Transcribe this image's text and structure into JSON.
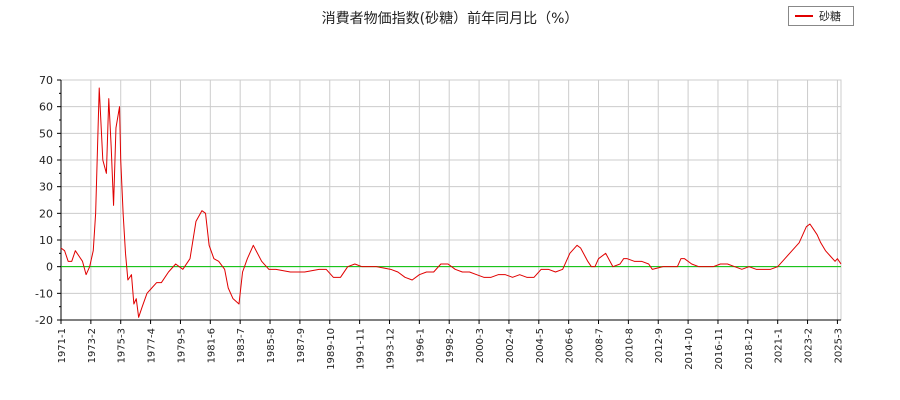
{
  "chart_data": {
    "type": "line",
    "title": "消費者物価指数(砂糖）前年同月比（%）",
    "xlabel": "",
    "ylabel": "",
    "ylim": [
      -20,
      70
    ],
    "yticks": [
      -20,
      -10,
      0,
      10,
      20,
      30,
      40,
      50,
      60,
      70
    ],
    "xlim": [
      "1971-1",
      "2025-6"
    ],
    "xticks": [
      "1971-1",
      "1973-2",
      "1975-3",
      "1977-4",
      "1979-5",
      "1981-6",
      "1983-7",
      "1985-8",
      "1987-9",
      "1989-10",
      "1991-11",
      "1993-12",
      "1996-1",
      "1998-2",
      "2000-3",
      "2002-4",
      "2004-5",
      "2006-6",
      "2008-7",
      "2010-8",
      "2012-9",
      "2014-10",
      "2016-11",
      "2018-12",
      "2021-1",
      "2023-2",
      "2025-3"
    ],
    "grid": true,
    "legend": "top-right",
    "reference_line": {
      "y": 0,
      "color": "#00c000"
    },
    "series": [
      {
        "name": "砂糖",
        "color": "#e00000",
        "points": [
          [
            "1971-1",
            7
          ],
          [
            "1971-4",
            6
          ],
          [
            "1971-7",
            2
          ],
          [
            "1971-10",
            2
          ],
          [
            "1972-1",
            6
          ],
          [
            "1972-4",
            4
          ],
          [
            "1972-7",
            2
          ],
          [
            "1972-10",
            -3
          ],
          [
            "1973-1",
            0
          ],
          [
            "1973-4",
            6
          ],
          [
            "1973-6",
            20
          ],
          [
            "1973-9",
            67
          ],
          [
            "1973-12",
            40
          ],
          [
            "1974-3",
            35
          ],
          [
            "1974-5",
            63
          ],
          [
            "1974-7",
            45
          ],
          [
            "1974-9",
            23
          ],
          [
            "1974-11",
            52
          ],
          [
            "1975-2",
            60
          ],
          [
            "1975-3",
            40
          ],
          [
            "1975-5",
            20
          ],
          [
            "1975-7",
            5
          ],
          [
            "1975-9",
            -5
          ],
          [
            "1975-12",
            -3
          ],
          [
            "1976-2",
            -14
          ],
          [
            "1976-4",
            -12
          ],
          [
            "1976-6",
            -19
          ],
          [
            "1976-9",
            -15
          ],
          [
            "1977-1",
            -10
          ],
          [
            "1977-5",
            -8
          ],
          [
            "1977-9",
            -6
          ],
          [
            "1978-1",
            -6
          ],
          [
            "1978-7",
            -2
          ],
          [
            "1979-1",
            1
          ],
          [
            "1979-7",
            -1
          ],
          [
            "1980-1",
            3
          ],
          [
            "1980-6",
            17
          ],
          [
            "1980-11",
            21
          ],
          [
            "1981-2",
            20
          ],
          [
            "1981-5",
            8
          ],
          [
            "1981-9",
            3
          ],
          [
            "1982-1",
            2
          ],
          [
            "1982-6",
            -1
          ],
          [
            "1982-9",
            -8
          ],
          [
            "1983-1",
            -12
          ],
          [
            "1983-6",
            -14
          ],
          [
            "1983-9",
            -2
          ],
          [
            "1984-1",
            3
          ],
          [
            "1984-6",
            8
          ],
          [
            "1985-1",
            2
          ],
          [
            "1985-7",
            -1
          ],
          [
            "1986-1",
            -1
          ],
          [
            "1987-1",
            -2
          ],
          [
            "1988-1",
            -2
          ],
          [
            "1989-1",
            -1
          ],
          [
            "1989-7",
            -1
          ],
          [
            "1990-1",
            -4
          ],
          [
            "1990-7",
            -4
          ],
          [
            "1991-1",
            0
          ],
          [
            "1991-7",
            1
          ],
          [
            "1992-1",
            0
          ],
          [
            "1993-1",
            0
          ],
          [
            "1994-1",
            -1
          ],
          [
            "1994-7",
            -2
          ],
          [
            "1995-1",
            -4
          ],
          [
            "1995-7",
            -5
          ],
          [
            "1996-1",
            -3
          ],
          [
            "1996-7",
            -2
          ],
          [
            "1997-1",
            -2
          ],
          [
            "1997-7",
            1
          ],
          [
            "1998-1",
            1
          ],
          [
            "1998-7",
            -1
          ],
          [
            "1999-1",
            -2
          ],
          [
            "1999-7",
            -2
          ],
          [
            "2000-1",
            -3
          ],
          [
            "2000-7",
            -4
          ],
          [
            "2001-1",
            -4
          ],
          [
            "2001-7",
            -3
          ],
          [
            "2002-1",
            -3
          ],
          [
            "2002-7",
            -4
          ],
          [
            "2003-1",
            -3
          ],
          [
            "2003-7",
            -4
          ],
          [
            "2004-1",
            -4
          ],
          [
            "2004-7",
            -1
          ],
          [
            "2005-1",
            -1
          ],
          [
            "2005-7",
            -2
          ],
          [
            "2006-1",
            -1
          ],
          [
            "2006-7",
            5
          ],
          [
            "2007-1",
            8
          ],
          [
            "2007-4",
            7
          ],
          [
            "2007-10",
            2
          ],
          [
            "2008-1",
            0
          ],
          [
            "2008-4",
            0
          ],
          [
            "2008-7",
            3
          ],
          [
            "2009-1",
            5
          ],
          [
            "2009-7",
            0
          ],
          [
            "2010-1",
            1
          ],
          [
            "2010-4",
            3
          ],
          [
            "2010-7",
            3
          ],
          [
            "2011-1",
            2
          ],
          [
            "2011-7",
            2
          ],
          [
            "2012-1",
            1
          ],
          [
            "2012-4",
            -1
          ],
          [
            "2013-1",
            0
          ],
          [
            "2014-1",
            0
          ],
          [
            "2014-4",
            3
          ],
          [
            "2014-7",
            3
          ],
          [
            "2015-1",
            1
          ],
          [
            "2015-7",
            0
          ],
          [
            "2016-1",
            0
          ],
          [
            "2016-7",
            0
          ],
          [
            "2017-1",
            1
          ],
          [
            "2017-7",
            1
          ],
          [
            "2018-1",
            0
          ],
          [
            "2018-7",
            -1
          ],
          [
            "2019-1",
            0
          ],
          [
            "2019-7",
            -1
          ],
          [
            "2020-1",
            -1
          ],
          [
            "2020-7",
            -1
          ],
          [
            "2021-1",
            0
          ],
          [
            "2021-7",
            3
          ],
          [
            "2022-1",
            6
          ],
          [
            "2022-7",
            9
          ],
          [
            "2023-1",
            15
          ],
          [
            "2023-4",
            16
          ],
          [
            "2023-7",
            14
          ],
          [
            "2023-10",
            12
          ],
          [
            "2024-1",
            9
          ],
          [
            "2024-5",
            6
          ],
          [
            "2024-9",
            4
          ],
          [
            "2025-1",
            2
          ],
          [
            "2025-3",
            3
          ],
          [
            "2025-6",
            1
          ]
        ]
      }
    ]
  }
}
